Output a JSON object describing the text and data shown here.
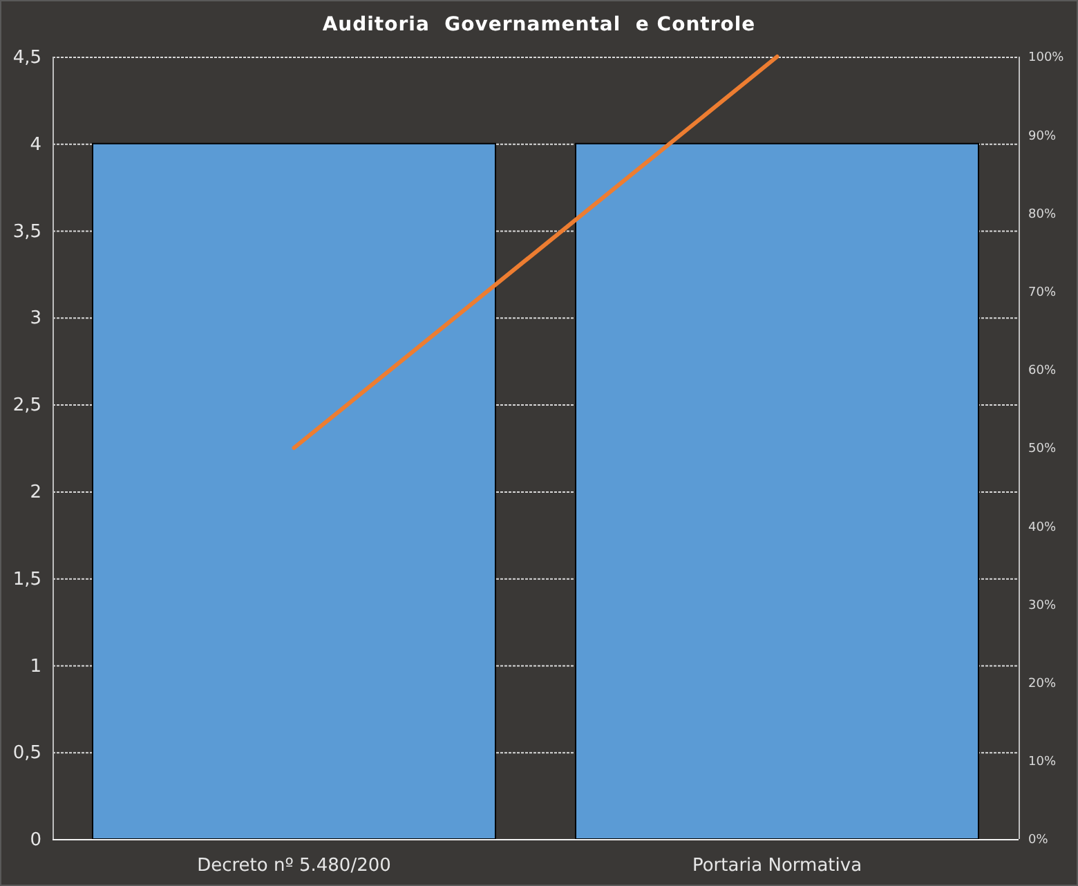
{
  "chart_data": {
    "type": "bar",
    "title": "Auditoria  Governamental  e Controle",
    "categories": [
      "Decreto nº 5.480/200",
      "Portaria Normativa"
    ],
    "series": [
      {
        "color": "#5b9bd5",
        "values": [
          4,
          4
        ]
      },
      {
        "type": "line",
        "axis": "y2",
        "color": "#ed7d31",
        "values": [
          50,
          100
        ]
      }
    ],
    "ylim": [
      0,
      4.5
    ],
    "yticks": [
      0,
      {
        "value": 0.5,
        "label": "0,5"
      },
      1,
      {
        "value": 1.5,
        "label": "1,5"
      },
      2,
      {
        "value": 2.5,
        "label": "2,5"
      },
      3,
      {
        "value": 3.5,
        "label": "3,5"
      },
      4,
      {
        "value": 4.5,
        "label": "4,5"
      }
    ],
    "y2lim": [
      0,
      100
    ],
    "y2ticks": [
      {
        "value": 0,
        "label": "0%"
      },
      {
        "value": 10,
        "label": "10%"
      },
      {
        "value": 20,
        "label": "20%"
      },
      {
        "value": 30,
        "label": "30%"
      },
      {
        "value": 40,
        "label": "40%"
      },
      {
        "value": 50,
        "label": "50%"
      },
      {
        "value": 60,
        "label": "60%"
      },
      {
        "value": 70,
        "label": "70%"
      },
      {
        "value": 80,
        "label": "80%"
      },
      {
        "value": 90,
        "label": "90%"
      },
      {
        "value": 100,
        "label": "100%"
      }
    ],
    "grid": "y",
    "marker": "none",
    "line_style": "solid"
  }
}
